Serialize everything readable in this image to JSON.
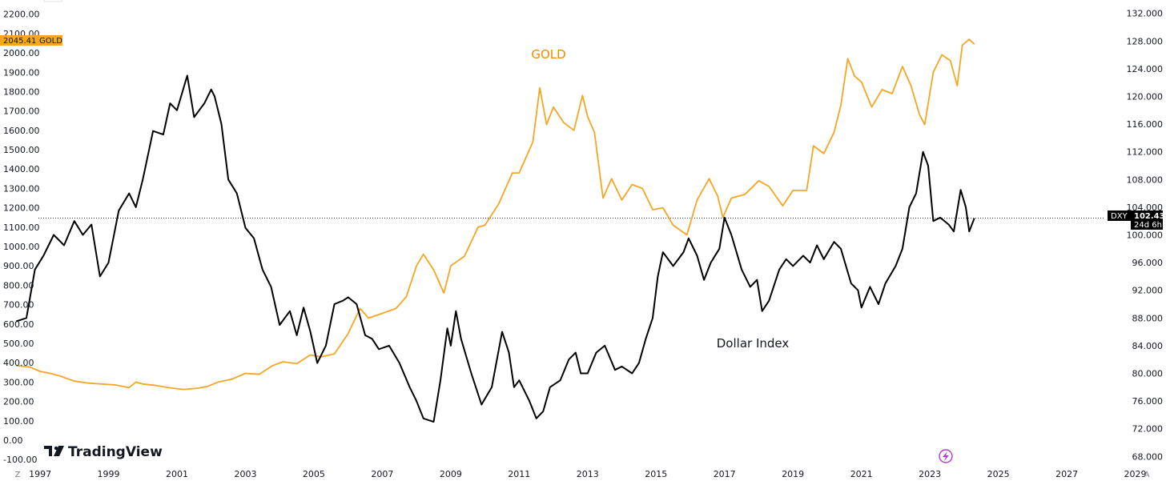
{
  "chart_data": {
    "type": "line",
    "title": "",
    "xlabel": "",
    "ylabel": "",
    "x_ticks": [
      "1997",
      "1999",
      "2001",
      "2003",
      "2005",
      "2007",
      "2009",
      "2011",
      "2013",
      "2015",
      "2017",
      "2019",
      "2021",
      "2023",
      "2025",
      "2027",
      "2029"
    ],
    "xlim": [
      1996.25,
      2029.9
    ],
    "y_left": {
      "series": "GOLD",
      "ylim": [
        -120,
        2240
      ],
      "ticks": [
        "-100.00",
        "0.00",
        "100.00",
        "200.00",
        "300.00",
        "400.00",
        "500.00",
        "600.00",
        "700.00",
        "800.00",
        "900.00",
        "1000.00",
        "1100.00",
        "1200.00",
        "1300.00",
        "1400.00",
        "1500.00",
        "1600.00",
        "1700.00",
        "1800.00",
        "1900.00",
        "2000.00",
        "2100.00",
        "2200.00"
      ]
    },
    "y_right": {
      "series": "DXY",
      "ylim": [
        67.0,
        133.0
      ],
      "ticks": [
        "68.000",
        "72.000",
        "76.000",
        "80.000",
        "84.000",
        "88.000",
        "92.000",
        "96.000",
        "100.000",
        "104.000",
        "108.000",
        "112.000",
        "116.000",
        "120.000",
        "124.000",
        "128.000",
        "132.000"
      ]
    },
    "grid": false,
    "series": [
      {
        "name": "GOLD",
        "axis": "left",
        "color": "#f5a623",
        "label": "GOLD",
        "points": [
          [
            1996.3,
            385
          ],
          [
            1996.7,
            378
          ],
          [
            1997.0,
            355
          ],
          [
            1997.3,
            345
          ],
          [
            1997.6,
            330
          ],
          [
            1998.0,
            305
          ],
          [
            1998.4,
            295
          ],
          [
            1998.8,
            290
          ],
          [
            1999.2,
            285
          ],
          [
            1999.6,
            272
          ],
          [
            1999.8,
            300
          ],
          [
            2000.0,
            290
          ],
          [
            2000.4,
            282
          ],
          [
            2000.8,
            270
          ],
          [
            2001.2,
            262
          ],
          [
            2001.6,
            268
          ],
          [
            2001.9,
            278
          ],
          [
            2002.2,
            300
          ],
          [
            2002.6,
            315
          ],
          [
            2003.0,
            345
          ],
          [
            2003.4,
            340
          ],
          [
            2003.8,
            385
          ],
          [
            2004.1,
            405
          ],
          [
            2004.5,
            395
          ],
          [
            2004.9,
            440
          ],
          [
            2005.2,
            430
          ],
          [
            2005.6,
            445
          ],
          [
            2006.0,
            550
          ],
          [
            2006.35,
            680
          ],
          [
            2006.6,
            630
          ],
          [
            2007.0,
            655
          ],
          [
            2007.4,
            680
          ],
          [
            2007.7,
            740
          ],
          [
            2008.0,
            900
          ],
          [
            2008.2,
            960
          ],
          [
            2008.5,
            880
          ],
          [
            2008.8,
            760
          ],
          [
            2009.0,
            900
          ],
          [
            2009.4,
            950
          ],
          [
            2009.8,
            1100
          ],
          [
            2010.0,
            1110
          ],
          [
            2010.4,
            1220
          ],
          [
            2010.8,
            1380
          ],
          [
            2011.0,
            1380
          ],
          [
            2011.4,
            1540
          ],
          [
            2011.6,
            1820
          ],
          [
            2011.8,
            1630
          ],
          [
            2012.0,
            1720
          ],
          [
            2012.3,
            1640
          ],
          [
            2012.6,
            1600
          ],
          [
            2012.85,
            1780
          ],
          [
            2013.0,
            1670
          ],
          [
            2013.2,
            1590
          ],
          [
            2013.45,
            1250
          ],
          [
            2013.7,
            1350
          ],
          [
            2014.0,
            1240
          ],
          [
            2014.3,
            1320
          ],
          [
            2014.6,
            1300
          ],
          [
            2014.9,
            1190
          ],
          [
            2015.2,
            1200
          ],
          [
            2015.5,
            1110
          ],
          [
            2015.9,
            1060
          ],
          [
            2016.2,
            1240
          ],
          [
            2016.55,
            1350
          ],
          [
            2016.8,
            1260
          ],
          [
            2016.95,
            1150
          ],
          [
            2017.2,
            1250
          ],
          [
            2017.6,
            1270
          ],
          [
            2018.0,
            1340
          ],
          [
            2018.3,
            1310
          ],
          [
            2018.7,
            1210
          ],
          [
            2019.0,
            1290
          ],
          [
            2019.4,
            1290
          ],
          [
            2019.6,
            1520
          ],
          [
            2019.9,
            1480
          ],
          [
            2020.2,
            1590
          ],
          [
            2020.4,
            1730
          ],
          [
            2020.6,
            1970
          ],
          [
            2020.8,
            1880
          ],
          [
            2021.0,
            1850
          ],
          [
            2021.3,
            1720
          ],
          [
            2021.6,
            1810
          ],
          [
            2021.9,
            1790
          ],
          [
            2022.2,
            1930
          ],
          [
            2022.45,
            1830
          ],
          [
            2022.7,
            1680
          ],
          [
            2022.85,
            1630
          ],
          [
            2023.1,
            1900
          ],
          [
            2023.35,
            1990
          ],
          [
            2023.6,
            1960
          ],
          [
            2023.8,
            1830
          ],
          [
            2023.95,
            2040
          ],
          [
            2024.15,
            2070
          ],
          [
            2024.3,
            2045
          ]
        ]
      },
      {
        "name": "DXY",
        "axis": "right",
        "color": "#000000",
        "label": "Dollar Index",
        "points": [
          [
            1996.3,
            87.5
          ],
          [
            1996.6,
            88.0
          ],
          [
            1996.85,
            95.0
          ],
          [
            1997.1,
            97.0
          ],
          [
            1997.4,
            100.0
          ],
          [
            1997.7,
            98.5
          ],
          [
            1998.0,
            102.0
          ],
          [
            1998.25,
            100.0
          ],
          [
            1998.5,
            101.5
          ],
          [
            1998.75,
            94.0
          ],
          [
            1999.0,
            96.0
          ],
          [
            1999.3,
            103.5
          ],
          [
            1999.6,
            106.0
          ],
          [
            1999.8,
            104.0
          ],
          [
            2000.0,
            108.0
          ],
          [
            2000.3,
            115.0
          ],
          [
            2000.6,
            114.5
          ],
          [
            2000.8,
            119.0
          ],
          [
            2001.0,
            118.0
          ],
          [
            2001.3,
            123.0
          ],
          [
            2001.5,
            117.0
          ],
          [
            2001.8,
            119.0
          ],
          [
            2002.0,
            121.0
          ],
          [
            2002.1,
            120.0
          ],
          [
            2002.3,
            116.0
          ],
          [
            2002.5,
            108.0
          ],
          [
            2002.75,
            106.0
          ],
          [
            2003.0,
            101.0
          ],
          [
            2003.25,
            99.5
          ],
          [
            2003.5,
            95.0
          ],
          [
            2003.75,
            92.5
          ],
          [
            2004.0,
            87.0
          ],
          [
            2004.3,
            89.0
          ],
          [
            2004.5,
            85.5
          ],
          [
            2004.7,
            89.5
          ],
          [
            2004.9,
            86.0
          ],
          [
            2005.1,
            81.5
          ],
          [
            2005.35,
            84.0
          ],
          [
            2005.6,
            90.0
          ],
          [
            2005.85,
            90.5
          ],
          [
            2006.0,
            91.0
          ],
          [
            2006.25,
            90.0
          ],
          [
            2006.5,
            85.5
          ],
          [
            2006.7,
            85.0
          ],
          [
            2006.9,
            83.5
          ],
          [
            2007.2,
            84.0
          ],
          [
            2007.5,
            81.5
          ],
          [
            2007.8,
            78.0
          ],
          [
            2008.0,
            76.0
          ],
          [
            2008.2,
            73.5
          ],
          [
            2008.5,
            73.0
          ],
          [
            2008.7,
            79.0
          ],
          [
            2008.9,
            86.5
          ],
          [
            2009.0,
            84.0
          ],
          [
            2009.15,
            89.0
          ],
          [
            2009.3,
            85.0
          ],
          [
            2009.6,
            80.0
          ],
          [
            2009.9,
            75.5
          ],
          [
            2010.2,
            78.0
          ],
          [
            2010.5,
            86.0
          ],
          [
            2010.7,
            83.0
          ],
          [
            2010.85,
            78.0
          ],
          [
            2011.0,
            79.0
          ],
          [
            2011.3,
            76.0
          ],
          [
            2011.5,
            73.5
          ],
          [
            2011.7,
            74.5
          ],
          [
            2011.9,
            78.0
          ],
          [
            2012.2,
            79.0
          ],
          [
            2012.45,
            82.0
          ],
          [
            2012.65,
            83.0
          ],
          [
            2012.8,
            80.0
          ],
          [
            2013.0,
            80.0
          ],
          [
            2013.25,
            83.0
          ],
          [
            2013.5,
            84.0
          ],
          [
            2013.8,
            80.5
          ],
          [
            2014.0,
            81.0
          ],
          [
            2014.3,
            80.0
          ],
          [
            2014.5,
            81.5
          ],
          [
            2014.7,
            85.0
          ],
          [
            2014.9,
            88.0
          ],
          [
            2015.05,
            94.0
          ],
          [
            2015.2,
            97.5
          ],
          [
            2015.5,
            95.5
          ],
          [
            2015.8,
            97.5
          ],
          [
            2015.95,
            99.5
          ],
          [
            2016.2,
            97.0
          ],
          [
            2016.4,
            93.5
          ],
          [
            2016.6,
            96.0
          ],
          [
            2016.85,
            98.0
          ],
          [
            2017.0,
            102.5
          ],
          [
            2017.2,
            100.0
          ],
          [
            2017.5,
            95.0
          ],
          [
            2017.75,
            92.5
          ],
          [
            2017.95,
            93.5
          ],
          [
            2018.1,
            89.0
          ],
          [
            2018.3,
            90.5
          ],
          [
            2018.6,
            95.0
          ],
          [
            2018.8,
            96.5
          ],
          [
            2019.0,
            95.5
          ],
          [
            2019.3,
            97.0
          ],
          [
            2019.5,
            96.0
          ],
          [
            2019.7,
            98.5
          ],
          [
            2019.9,
            96.5
          ],
          [
            2020.2,
            99.0
          ],
          [
            2020.4,
            98.0
          ],
          [
            2020.7,
            93.0
          ],
          [
            2020.9,
            92.0
          ],
          [
            2021.0,
            89.5
          ],
          [
            2021.25,
            92.5
          ],
          [
            2021.5,
            90.0
          ],
          [
            2021.7,
            93.0
          ],
          [
            2022.0,
            95.5
          ],
          [
            2022.2,
            98.0
          ],
          [
            2022.4,
            104.0
          ],
          [
            2022.6,
            106.0
          ],
          [
            2022.8,
            112.0
          ],
          [
            2022.95,
            110.0
          ],
          [
            2023.1,
            102.0
          ],
          [
            2023.3,
            102.5
          ],
          [
            2023.55,
            101.5
          ],
          [
            2023.7,
            100.5
          ],
          [
            2023.9,
            106.5
          ],
          [
            2024.05,
            104.0
          ],
          [
            2024.15,
            100.5
          ],
          [
            2024.3,
            102.4
          ]
        ]
      }
    ],
    "annotations": [
      {
        "text": "GOLD",
        "series": "GOLD"
      },
      {
        "text": "Dollar Index",
        "series": "DXY"
      }
    ],
    "last_values": {
      "gold": {
        "value": "2045.41",
        "name": "GOLD"
      },
      "dxy": {
        "name": "DXY",
        "value": "102.435",
        "countdown": "24d 6h"
      }
    },
    "reference_line": {
      "axis": "right",
      "value": 102.435,
      "style": "dotted"
    }
  },
  "branding": {
    "logo_text": "TradingView",
    "logo_mark": "17"
  },
  "corners": {
    "left": "Z",
    "right": "A"
  },
  "icons": {
    "flash": "lightning-icon"
  },
  "colors": {
    "gold": "#f5a623",
    "gold_label": "#f08a00",
    "dxy": "#000000",
    "badge_dark": "#000000"
  }
}
